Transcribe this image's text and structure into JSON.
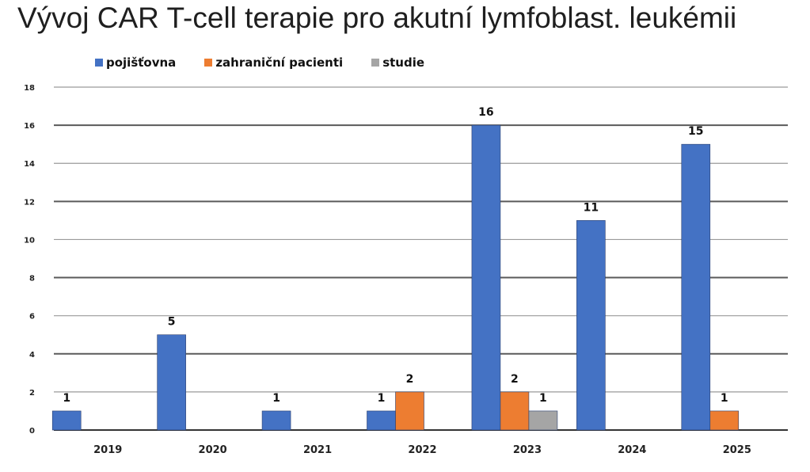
{
  "chart_data": {
    "type": "bar",
    "title": "Vývoj CAR T-cell terapie pro akutní lymfoblast. leukémii",
    "categories": [
      "2019",
      "2020",
      "2021",
      "2022",
      "2023",
      "2024",
      "2025"
    ],
    "series": [
      {
        "name": "pojišťovna",
        "color": "#4472C4",
        "values": [
          1,
          5,
          1,
          1,
          16,
          11,
          15
        ]
      },
      {
        "name": "zahraniční pacienti",
        "color": "#ED7D31",
        "values": [
          0,
          0,
          0,
          2,
          2,
          0,
          1
        ]
      },
      {
        "name": "studie",
        "color": "#A5A5A5",
        "values": [
          0,
          0,
          0,
          0,
          1,
          0,
          0
        ]
      }
    ],
    "ylim": [
      0,
      18
    ],
    "yticks": [
      0,
      2,
      4,
      6,
      8,
      10,
      12,
      14,
      16,
      18
    ],
    "grid": true,
    "legend_position": "top-left",
    "data_labels": true
  }
}
